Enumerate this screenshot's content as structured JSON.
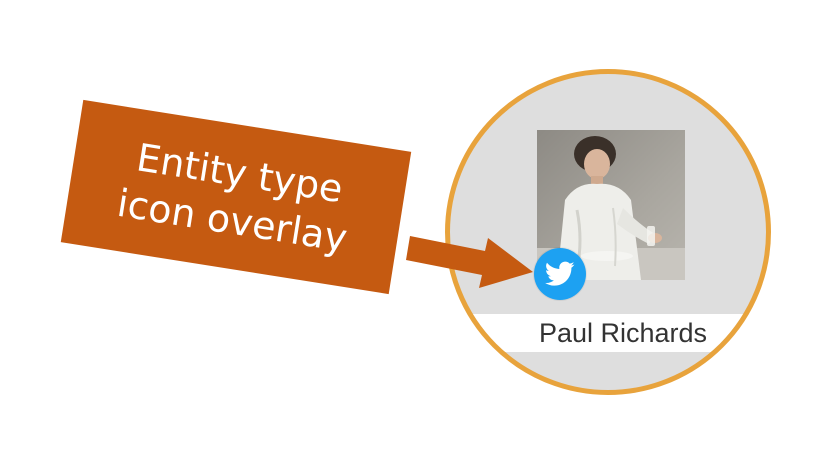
{
  "callout": {
    "line1": "Entity type",
    "line2": "icon overlay",
    "color": "#c55a11",
    "text_color": "#ffffff"
  },
  "entity": {
    "name": "Paul Richards",
    "ring_color": "#e8a33c",
    "background_color": "#dedede",
    "photo_icon": "person-photo",
    "type_icon": "twitter-bird-icon",
    "type_icon_color": "#1da1f2"
  }
}
